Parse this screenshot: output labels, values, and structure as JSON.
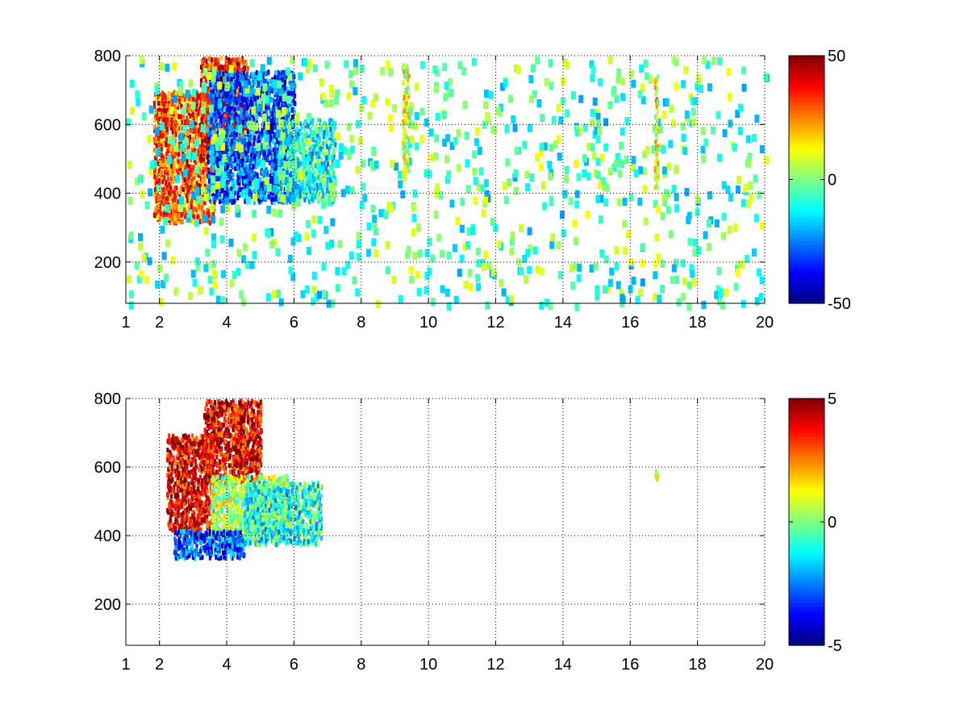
{
  "chart_data": [
    {
      "type": "heatmap",
      "title": "",
      "xlabel": "",
      "ylabel": "",
      "xlim": [
        1,
        20
      ],
      "ylim": [
        80,
        800
      ],
      "x_ticks": [
        1,
        2,
        4,
        6,
        8,
        10,
        12,
        14,
        16,
        18,
        20
      ],
      "x_tick_labels": [
        "1",
        "2",
        "4",
        "6",
        "8",
        "10",
        "12",
        "14",
        "16",
        "18",
        "20"
      ],
      "y_ticks": [
        200,
        400,
        600,
        800
      ],
      "y_tick_labels": [
        "200",
        "400",
        "600",
        "800"
      ],
      "grid": true,
      "colormap": "jet",
      "colorbar": {
        "min": -50,
        "max": 50,
        "ticks": [
          -50,
          0,
          50
        ],
        "tick_labels": [
          "-50",
          "0",
          "50"
        ]
      },
      "regions": [
        {
          "x": [
            1.8,
            3.6
          ],
          "y": [
            320,
            700
          ],
          "value": 30
        },
        {
          "x": [
            3.2,
            4.6
          ],
          "y": [
            500,
            800
          ],
          "value": 35
        },
        {
          "x": [
            3.4,
            6.0
          ],
          "y": [
            380,
            760
          ],
          "value": -30
        },
        {
          "x": [
            5.5,
            7.2
          ],
          "y": [
            380,
            620
          ],
          "value": -10
        },
        {
          "x": [
            1.0,
            20.0
          ],
          "y": [
            80,
            800
          ],
          "value": -5
        },
        {
          "x": [
            9.2,
            9.4
          ],
          "y": [
            450,
            780
          ],
          "value": 8
        },
        {
          "x": [
            16.7,
            16.8
          ],
          "y": [
            420,
            750
          ],
          "value": 12
        }
      ]
    },
    {
      "type": "heatmap",
      "title": "",
      "xlabel": "",
      "ylabel": "",
      "xlim": [
        1,
        20
      ],
      "ylim": [
        80,
        800
      ],
      "x_ticks": [
        1,
        2,
        4,
        6,
        8,
        10,
        12,
        14,
        16,
        18,
        20
      ],
      "x_tick_labels": [
        "1",
        "2",
        "4",
        "6",
        "8",
        "10",
        "12",
        "14",
        "16",
        "18",
        "20"
      ],
      "y_ticks": [
        200,
        400,
        600,
        800
      ],
      "y_tick_labels": [
        "200",
        "400",
        "600",
        "800"
      ],
      "grid": true,
      "colormap": "jet",
      "colorbar": {
        "min": -5,
        "max": 5,
        "ticks": [
          -5,
          0,
          5
        ],
        "tick_labels": [
          "-5",
          "0",
          "5"
        ]
      },
      "regions": [
        {
          "x": [
            2.2,
            3.6
          ],
          "y": [
            420,
            700
          ],
          "value": 4
        },
        {
          "x": [
            3.3,
            5.0
          ],
          "y": [
            560,
            800
          ],
          "value": 4
        },
        {
          "x": [
            3.5,
            5.8
          ],
          "y": [
            400,
            580
          ],
          "value": 0.5
        },
        {
          "x": [
            2.4,
            4.5
          ],
          "y": [
            340,
            420
          ],
          "value": -3
        },
        {
          "x": [
            4.5,
            6.8
          ],
          "y": [
            380,
            560
          ],
          "value": -1
        },
        {
          "x": [
            16.7,
            16.8
          ],
          "y": [
            565,
            595
          ],
          "value": 1
        }
      ]
    }
  ]
}
